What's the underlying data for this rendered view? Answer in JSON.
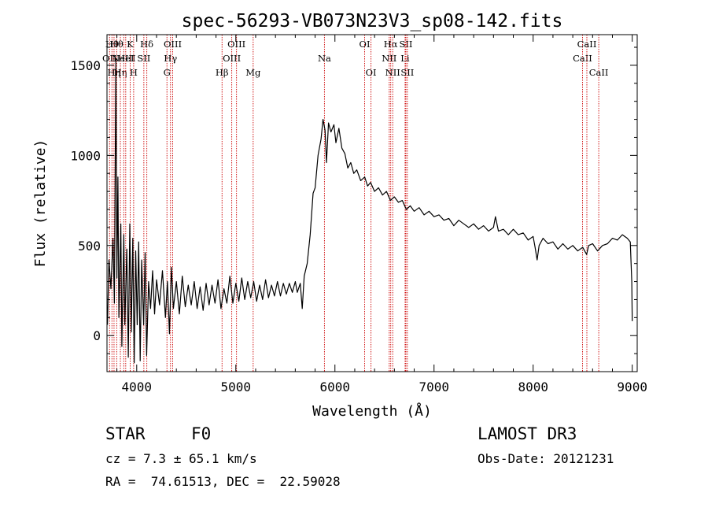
{
  "chart_data": {
    "type": "line",
    "title": "spec-56293-VB073N23V3_sp08-142.fits",
    "xlabel": "Wavelength (Å)",
    "ylabel": "Flux (relative)",
    "xlim": [
      3700,
      9050
    ],
    "ylim": [
      -200,
      1670
    ],
    "x_ticks": [
      4000,
      5000,
      6000,
      7000,
      8000,
      9000
    ],
    "x_tick_labels": [
      "4000",
      "5000",
      "6000",
      "7000",
      "8000",
      "9000"
    ],
    "y_ticks": [
      0,
      500,
      1000,
      1500
    ],
    "y_tick_labels": [
      "0",
      "500",
      "1000",
      "1500"
    ],
    "grid": false,
    "series": [
      {
        "name": "spectrum",
        "color": "#000000",
        "points": [
          [
            3705,
            60
          ],
          [
            3720,
            420
          ],
          [
            3740,
            260
          ],
          [
            3760,
            540
          ],
          [
            3775,
            180
          ],
          [
            3790,
            1540
          ],
          [
            3800,
            320
          ],
          [
            3810,
            880
          ],
          [
            3820,
            100
          ],
          [
            3840,
            620
          ],
          [
            3850,
            -60
          ],
          [
            3870,
            560
          ],
          [
            3880,
            60
          ],
          [
            3900,
            480
          ],
          [
            3915,
            -120
          ],
          [
            3930,
            620
          ],
          [
            3945,
            20
          ],
          [
            3960,
            540
          ],
          [
            3975,
            -150
          ],
          [
            3990,
            470
          ],
          [
            4005,
            60
          ],
          [
            4020,
            520
          ],
          [
            4035,
            -140
          ],
          [
            4050,
            420
          ],
          [
            4070,
            60
          ],
          [
            4085,
            460
          ],
          [
            4100,
            -110
          ],
          [
            4120,
            300
          ],
          [
            4140,
            150
          ],
          [
            4160,
            360
          ],
          [
            4180,
            120
          ],
          [
            4200,
            310
          ],
          [
            4230,
            170
          ],
          [
            4260,
            360
          ],
          [
            4290,
            100
          ],
          [
            4310,
            300
          ],
          [
            4330,
            10
          ],
          [
            4350,
            380
          ],
          [
            4370,
            150
          ],
          [
            4400,
            300
          ],
          [
            4430,
            120
          ],
          [
            4460,
            330
          ],
          [
            4490,
            160
          ],
          [
            4520,
            280
          ],
          [
            4550,
            170
          ],
          [
            4580,
            300
          ],
          [
            4610,
            150
          ],
          [
            4640,
            270
          ],
          [
            4670,
            140
          ],
          [
            4700,
            290
          ],
          [
            4730,
            170
          ],
          [
            4760,
            280
          ],
          [
            4790,
            180
          ],
          [
            4820,
            310
          ],
          [
            4850,
            150
          ],
          [
            4880,
            260
          ],
          [
            4910,
            180
          ],
          [
            4940,
            330
          ],
          [
            4970,
            180
          ],
          [
            5000,
            290
          ],
          [
            5030,
            190
          ],
          [
            5060,
            320
          ],
          [
            5090,
            200
          ],
          [
            5120,
            300
          ],
          [
            5150,
            210
          ],
          [
            5180,
            300
          ],
          [
            5210,
            190
          ],
          [
            5240,
            280
          ],
          [
            5270,
            200
          ],
          [
            5300,
            310
          ],
          [
            5330,
            210
          ],
          [
            5360,
            280
          ],
          [
            5390,
            220
          ],
          [
            5420,
            300
          ],
          [
            5450,
            220
          ],
          [
            5480,
            290
          ],
          [
            5510,
            230
          ],
          [
            5540,
            290
          ],
          [
            5570,
            240
          ],
          [
            5600,
            300
          ],
          [
            5620,
            240
          ],
          [
            5650,
            290
          ],
          [
            5670,
            150
          ],
          [
            5690,
            330
          ],
          [
            5720,
            400
          ],
          [
            5750,
            560
          ],
          [
            5780,
            790
          ],
          [
            5800,
            820
          ],
          [
            5830,
            1000
          ],
          [
            5860,
            1090
          ],
          [
            5880,
            1200
          ],
          [
            5900,
            1140
          ],
          [
            5915,
            960
          ],
          [
            5935,
            1180
          ],
          [
            5960,
            1130
          ],
          [
            5990,
            1170
          ],
          [
            6010,
            1070
          ],
          [
            6040,
            1150
          ],
          [
            6070,
            1040
          ],
          [
            6100,
            1010
          ],
          [
            6130,
            930
          ],
          [
            6160,
            960
          ],
          [
            6190,
            900
          ],
          [
            6220,
            920
          ],
          [
            6260,
            860
          ],
          [
            6300,
            880
          ],
          [
            6330,
            830
          ],
          [
            6360,
            850
          ],
          [
            6400,
            800
          ],
          [
            6440,
            820
          ],
          [
            6480,
            780
          ],
          [
            6520,
            800
          ],
          [
            6560,
            750
          ],
          [
            6600,
            770
          ],
          [
            6640,
            740
          ],
          [
            6680,
            750
          ],
          [
            6720,
            700
          ],
          [
            6760,
            720
          ],
          [
            6800,
            690
          ],
          [
            6850,
            710
          ],
          [
            6900,
            670
          ],
          [
            6950,
            690
          ],
          [
            7000,
            660
          ],
          [
            7050,
            670
          ],
          [
            7100,
            640
          ],
          [
            7150,
            650
          ],
          [
            7200,
            610
          ],
          [
            7250,
            640
          ],
          [
            7300,
            620
          ],
          [
            7350,
            600
          ],
          [
            7400,
            620
          ],
          [
            7450,
            590
          ],
          [
            7500,
            610
          ],
          [
            7550,
            580
          ],
          [
            7600,
            600
          ],
          [
            7620,
            660
          ],
          [
            7650,
            580
          ],
          [
            7700,
            590
          ],
          [
            7750,
            560
          ],
          [
            7800,
            590
          ],
          [
            7850,
            560
          ],
          [
            7900,
            570
          ],
          [
            7950,
            530
          ],
          [
            8000,
            550
          ],
          [
            8020,
            490
          ],
          [
            8040,
            420
          ],
          [
            8060,
            500
          ],
          [
            8100,
            540
          ],
          [
            8150,
            510
          ],
          [
            8200,
            520
          ],
          [
            8250,
            480
          ],
          [
            8300,
            510
          ],
          [
            8350,
            480
          ],
          [
            8400,
            500
          ],
          [
            8450,
            470
          ],
          [
            8500,
            490
          ],
          [
            8540,
            450
          ],
          [
            8560,
            500
          ],
          [
            8600,
            510
          ],
          [
            8650,
            470
          ],
          [
            8700,
            500
          ],
          [
            8750,
            510
          ],
          [
            8800,
            540
          ],
          [
            8850,
            530
          ],
          [
            8900,
            560
          ],
          [
            8950,
            540
          ],
          [
            8980,
            520
          ],
          [
            8995,
            300
          ],
          [
            9000,
            80
          ]
        ]
      }
    ],
    "lines": [
      {
        "x": 3726,
        "label": "OII",
        "row": 1
      },
      {
        "x": 3750,
        "label": "Hθ",
        "row": 0
      },
      {
        "x": 3771,
        "label": "Hη",
        "row": 2
      },
      {
        "x": 3798,
        "label": "Hθ",
        "row": 0
      },
      {
        "x": 3835,
        "label": "Hη",
        "row": 2
      },
      {
        "x": 3869,
        "label": "NeIII",
        "row": 1
      },
      {
        "x": 3889,
        "label": "HeI",
        "row": 1
      },
      {
        "x": 3934,
        "label": "K",
        "row": 0
      },
      {
        "x": 3969,
        "label": "H",
        "row": 2
      },
      {
        "x": 4072,
        "label": "SII",
        "row": 1
      },
      {
        "x": 4102,
        "label": "Hδ",
        "row": 0
      },
      {
        "x": 4305,
        "label": "G",
        "row": 2
      },
      {
        "x": 4341,
        "label": "Hγ",
        "row": 1
      },
      {
        "x": 4363,
        "label": "OIII",
        "row": 0
      },
      {
        "x": 4861,
        "label": "Hβ",
        "row": 2
      },
      {
        "x": 4959,
        "label": "OIII",
        "row": 1
      },
      {
        "x": 5007,
        "label": "OIII",
        "row": 0
      },
      {
        "x": 5175,
        "label": "Mg",
        "row": 2
      },
      {
        "x": 5894,
        "label": "Na",
        "row": 1
      },
      {
        "x": 6300,
        "label": "OI",
        "row": 0
      },
      {
        "x": 6364,
        "label": "OI",
        "row": 2
      },
      {
        "x": 6548,
        "label": "NII",
        "row": 1
      },
      {
        "x": 6563,
        "label": "Hα",
        "row": 0
      },
      {
        "x": 6583,
        "label": "NII",
        "row": 2
      },
      {
        "x": 6708,
        "label": "Li",
        "row": 1
      },
      {
        "x": 6716,
        "label": "SII",
        "row": 0
      },
      {
        "x": 6731,
        "label": "SII",
        "row": 2
      },
      {
        "x": 8498,
        "label": "CaII",
        "row": 1
      },
      {
        "x": 8542,
        "label": "CaII",
        "row": 0
      },
      {
        "x": 8662,
        "label": "CaII",
        "row": 2
      }
    ],
    "line_color": "#cc0000"
  },
  "info": {
    "object_class": "STAR",
    "subclass": "F0",
    "redshift": "cz = 7.3 ± 65.1 km/s",
    "coords": "RA =  74.61513, DEC =  22.59028",
    "survey": "LAMOST DR3",
    "obs_date": "Obs-Date: 20121231"
  }
}
